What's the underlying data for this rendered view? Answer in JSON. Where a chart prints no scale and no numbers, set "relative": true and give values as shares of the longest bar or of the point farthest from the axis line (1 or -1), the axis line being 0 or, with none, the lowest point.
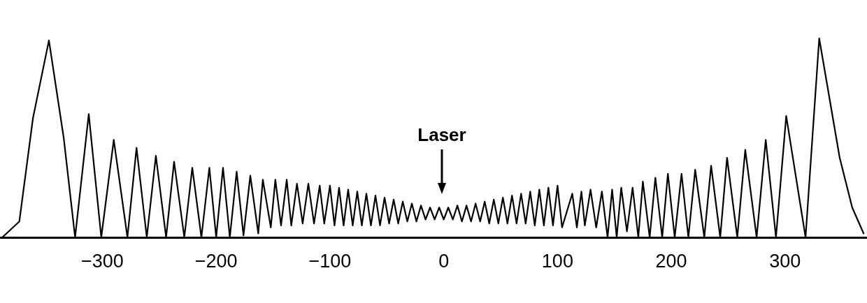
{
  "chart_data": {
    "type": "line",
    "relative": true,
    "xlim": [
      -390,
      372
    ],
    "xticks": [
      -300,
      -200,
      -100,
      0,
      100,
      200,
      300
    ],
    "grid": false,
    "marker": "none",
    "line_style": "solid",
    "annotations": [
      "Laser"
    ],
    "series": [
      {
        "color": "#000000",
        "x": [
          -388,
          -373,
          -361,
          -347,
          -334,
          -324,
          -312,
          -301,
          -290,
          -278,
          -270,
          -261,
          -253,
          -244,
          -237,
          -228,
          -221,
          -213,
          -206,
          -200,
          -194,
          -188,
          -182,
          -176,
          -170,
          -163,
          -159,
          -152,
          -148,
          -143,
          -138,
          -134,
          -129,
          -124,
          -119,
          -114,
          -109,
          -105,
          -100,
          -96,
          -92,
          -88,
          -84,
          -80,
          -76,
          -72,
          -68,
          -64,
          -60,
          -56,
          -52,
          -48,
          -44,
          -40,
          -36,
          -32,
          -28,
          -24,
          -20,
          -16,
          -12,
          -8,
          -4,
          0,
          4,
          8,
          12,
          16,
          20,
          24,
          28,
          32,
          36,
          40,
          44,
          48,
          52,
          56,
          60,
          64,
          68,
          72,
          76,
          80,
          84,
          88,
          92,
          96,
          100,
          104,
          113,
          117,
          121,
          124,
          129,
          134,
          139,
          144,
          148,
          152,
          156,
          161,
          166,
          171,
          175,
          181,
          186,
          192,
          197,
          203,
          209,
          215,
          221,
          229,
          235,
          243,
          249,
          258,
          265,
          275,
          283,
          292,
          301,
          318,
          330,
          348,
          359,
          369
        ],
        "values": [
          0,
          0.08,
          0.6,
          0.99,
          0.5,
          0,
          0.62,
          0,
          0.49,
          0,
          0.45,
          0,
          0.41,
          0,
          0.38,
          0,
          0.35,
          0,
          0.35,
          0,
          0.35,
          0,
          0.33,
          0.01,
          0.31,
          0.02,
          0.29,
          0.05,
          0.29,
          0.06,
          0.29,
          0.06,
          0.27,
          0.07,
          0.27,
          0.07,
          0.26,
          0.07,
          0.26,
          0.06,
          0.25,
          0.06,
          0.24,
          0.06,
          0.23,
          0.06,
          0.22,
          0.06,
          0.21,
          0.06,
          0.2,
          0.07,
          0.19,
          0.07,
          0.18,
          0.08,
          0.17,
          0.08,
          0.16,
          0.09,
          0.15,
          0.09,
          0.15,
          0.09,
          0.15,
          0.09,
          0.16,
          0.08,
          0.16,
          0.08,
          0.17,
          0.08,
          0.18,
          0.07,
          0.19,
          0.07,
          0.2,
          0.07,
          0.21,
          0.07,
          0.22,
          0.07,
          0.23,
          0.06,
          0.24,
          0.06,
          0.25,
          0.06,
          0.26,
          0.05,
          0.22,
          0.05,
          0.23,
          0.06,
          0.24,
          0.05,
          0.23,
          0,
          0.24,
          0,
          0.25,
          0.03,
          0.25,
          0,
          0.28,
          0,
          0.3,
          0,
          0.32,
          0,
          0.32,
          0,
          0.34,
          0,
          0.36,
          0,
          0.4,
          0,
          0.44,
          0,
          0.49,
          0,
          0.61,
          0,
          1,
          0.4,
          0.15,
          0.02
        ]
      }
    ]
  }
}
